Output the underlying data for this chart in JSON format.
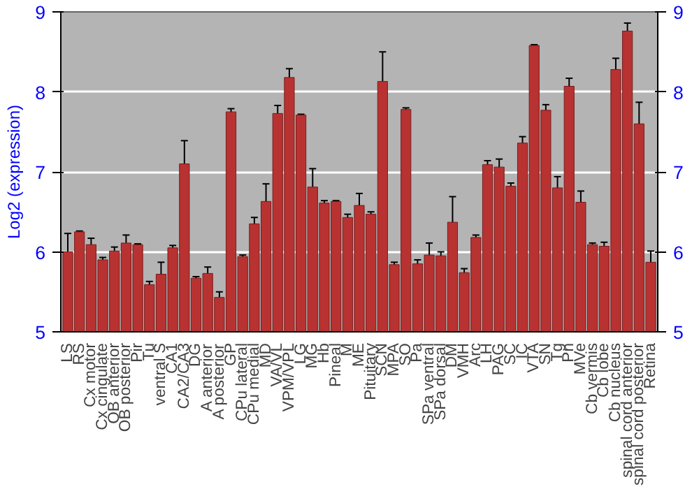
{
  "chart_data": {
    "type": "bar",
    "ylabel": "Log2 (expression)",
    "categories": [
      "LS",
      "RS",
      "Cx motor",
      "Cx cingulate",
      "OB anterior",
      "OB posterior",
      "Pir",
      "Tu",
      "ventral S",
      "CA1",
      "CA2/CA3",
      "DG",
      "A anterior",
      "A posterior",
      "GP",
      "CPu lateral",
      "CPu medial",
      "MD",
      "VA/VL",
      "VPM/VPL",
      "LG",
      "MG",
      "Hb",
      "Pineal",
      "M",
      "ME",
      "Pituitary",
      "SCN",
      "MPA",
      "SO",
      "Pa",
      "SPa ventral",
      "SPa dorsal",
      "DM",
      "VMH",
      "Arc",
      "LH",
      "PAG",
      "SC",
      "IC",
      "VTA",
      "SN",
      "Tg",
      "Pn",
      "MVe",
      "Cb vermis",
      "Cb lobe",
      "Cb nucleus",
      "spinal cord anterior",
      "spinal cord posterior",
      "Retina"
    ],
    "values": [
      6.0,
      6.25,
      6.09,
      5.9,
      6.01,
      6.11,
      6.09,
      5.59,
      5.72,
      6.05,
      7.1,
      5.67,
      5.73,
      5.43,
      7.75,
      5.94,
      6.35,
      6.63,
      7.73,
      8.18,
      7.71,
      6.81,
      6.61,
      6.63,
      6.43,
      6.58,
      6.47,
      8.13,
      5.84,
      7.78,
      5.85,
      5.96,
      5.95,
      6.37,
      5.74,
      6.18,
      7.09,
      7.06,
      6.82,
      7.36,
      8.58,
      7.77,
      6.8,
      8.07,
      6.62,
      6.09,
      6.07,
      8.28,
      8.76,
      7.6,
      5.87
    ],
    "errors": [
      0.23,
      0.01,
      0.08,
      0.03,
      0.05,
      0.1,
      0.01,
      0.04,
      0.15,
      0.03,
      0.29,
      0.02,
      0.08,
      0.07,
      0.04,
      0.02,
      0.08,
      0.22,
      0.1,
      0.11,
      0.01,
      0.23,
      0.03,
      0.01,
      0.04,
      0.15,
      0.03,
      0.37,
      0.03,
      0.02,
      0.05,
      0.15,
      0.05,
      0.32,
      0.05,
      0.03,
      0.05,
      0.1,
      0.04,
      0.08,
      0.01,
      0.07,
      0.14,
      0.1,
      0.14,
      0.02,
      0.05,
      0.14,
      0.1,
      0.27,
      0.14
    ],
    "color": "#b83232",
    "ylim": [
      5,
      9
    ],
    "yticks": [
      5,
      6,
      7,
      8,
      9
    ],
    "y2lim": [
      5,
      9
    ],
    "y2ticks": [
      5,
      6,
      7,
      8,
      9
    ],
    "grid": "y"
  }
}
